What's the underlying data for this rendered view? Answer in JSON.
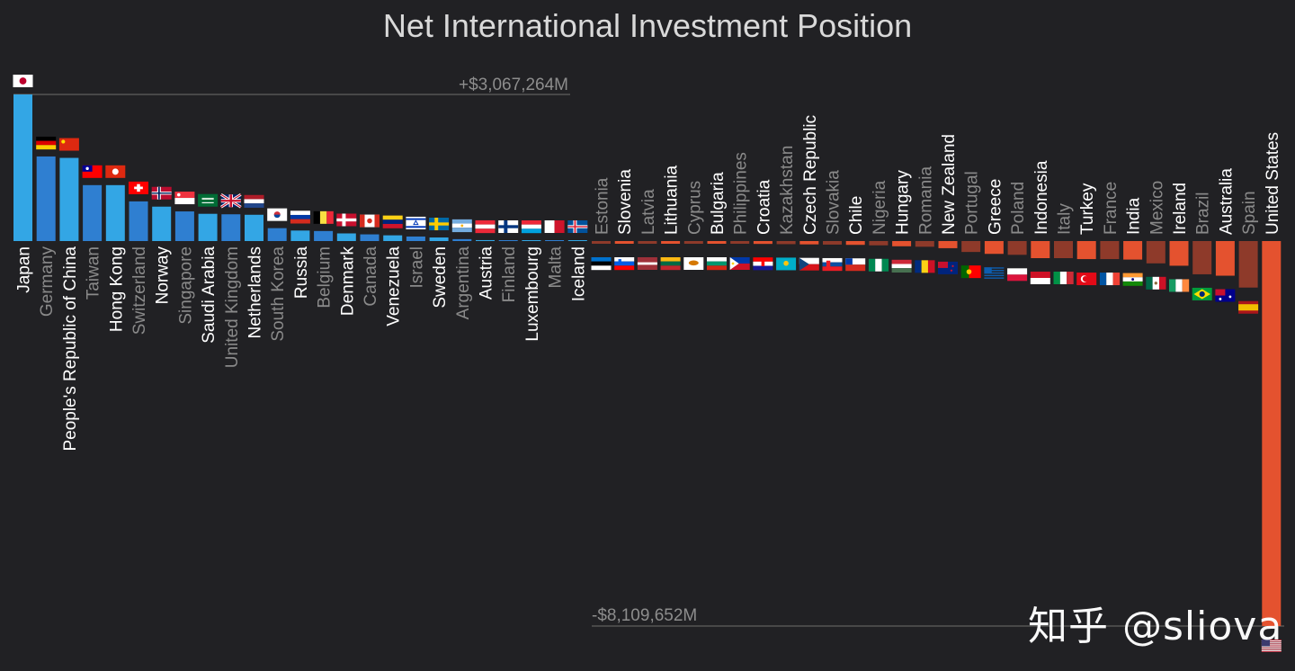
{
  "title": "Net International Investment Position",
  "watermark": "知乎 @sliova",
  "chart_data": {
    "type": "bar",
    "title": "Net International Investment Position",
    "max_label": "+$3,067,264M",
    "min_label": "-$8,109,652M",
    "unit": "USD millions",
    "ylim": [
      -8109652,
      3067264
    ],
    "colors": {
      "positive_light": "#33a6e5",
      "positive_dark": "#2f7fd1",
      "negative_bright": "#e4522f",
      "negative_dark": "#8e3a2a",
      "label_bright": "#ffffff",
      "label_dim": "#8a8a8a",
      "range_line": "#555555"
    },
    "categories": [
      "Japan",
      "Germany",
      "People's Republic of China",
      "Taiwan",
      "Hong Kong",
      "Switzerland",
      "Norway",
      "Singapore",
      "Saudi Arabia",
      "United Kingdom",
      "Netherlands",
      "South Korea",
      "Russia",
      "Belgium",
      "Denmark",
      "Canada",
      "Venezuela",
      "Israel",
      "Sweden",
      "Argentina",
      "Austria",
      "Finland",
      "Luxembourg",
      "Malta",
      "Iceland",
      "Estonia",
      "Slovenia",
      "Latvia",
      "Lithuania",
      "Cyprus",
      "Bulgaria",
      "Philippines",
      "Croatia",
      "Kazakhstan",
      "Czech Republic",
      "Slovakia",
      "Chile",
      "Nigeria",
      "Hungary",
      "Romania",
      "New Zealand",
      "Portugal",
      "Greece",
      "Poland",
      "Indonesia",
      "Italy",
      "Turkey",
      "France",
      "India",
      "Mexico",
      "Ireland",
      "Brazil",
      "Australia",
      "Spain",
      "United States"
    ],
    "values": [
      3067264,
      1770000,
      1740000,
      1170000,
      1170000,
      830000,
      720000,
      620000,
      570000,
      560000,
      550000,
      270000,
      220000,
      210000,
      160000,
      140000,
      120000,
      95000,
      75000,
      40000,
      20000,
      10000,
      5000,
      3000,
      1000,
      -20000,
      -25000,
      -35000,
      -40000,
      -45000,
      -48000,
      -55000,
      -60000,
      -65000,
      -70000,
      -75000,
      -80000,
      -90000,
      -110000,
      -120000,
      -150000,
      -230000,
      -270000,
      -290000,
      -360000,
      -360000,
      -380000,
      -380000,
      -390000,
      -470000,
      -520000,
      -700000,
      -730000,
      -980000,
      -8109652
    ],
    "label_style": [
      "bright",
      "dim",
      "bright",
      "dim",
      "bright",
      "dim",
      "bright",
      "dim",
      "bright",
      "dim",
      "bright",
      "dim",
      "bright",
      "dim",
      "bright",
      "dim",
      "bright",
      "dim",
      "bright",
      "dim",
      "bright",
      "dim",
      "bright",
      "dim",
      "bright",
      "dim",
      "bright",
      "dim",
      "bright",
      "dim",
      "bright",
      "dim",
      "bright",
      "dim",
      "bright",
      "dim",
      "bright",
      "dim",
      "bright",
      "dim",
      "bright",
      "dim",
      "bright",
      "dim",
      "bright",
      "dim",
      "bright",
      "dim",
      "bright",
      "dim",
      "bright",
      "dim",
      "bright",
      "dim",
      "bright"
    ],
    "flag_icons": [
      "japan-flag-icon",
      "germany-flag-icon",
      "china-flag-icon",
      "taiwan-flag-icon",
      "hong-kong-flag-icon",
      "switzerland-flag-icon",
      "norway-flag-icon",
      "singapore-flag-icon",
      "saudi-arabia-flag-icon",
      "united-kingdom-flag-icon",
      "netherlands-flag-icon",
      "south-korea-flag-icon",
      "russia-flag-icon",
      "belgium-flag-icon",
      "denmark-flag-icon",
      "canada-flag-icon",
      "venezuela-flag-icon",
      "israel-flag-icon",
      "sweden-flag-icon",
      "argentina-flag-icon",
      "austria-flag-icon",
      "finland-flag-icon",
      "luxembourg-flag-icon",
      "malta-flag-icon",
      "iceland-flag-icon",
      "estonia-flag-icon",
      "slovenia-flag-icon",
      "latvia-flag-icon",
      "lithuania-flag-icon",
      "cyprus-flag-icon",
      "bulgaria-flag-icon",
      "philippines-flag-icon",
      "croatia-flag-icon",
      "kazakhstan-flag-icon",
      "czech-republic-flag-icon",
      "slovakia-flag-icon",
      "chile-flag-icon",
      "nigeria-flag-icon",
      "hungary-flag-icon",
      "romania-flag-icon",
      "new-zealand-flag-icon",
      "portugal-flag-icon",
      "greece-flag-icon",
      "poland-flag-icon",
      "indonesia-flag-icon",
      "italy-flag-icon",
      "turkey-flag-icon",
      "france-flag-icon",
      "india-flag-icon",
      "mexico-flag-icon",
      "ireland-flag-icon",
      "brazil-flag-icon",
      "australia-flag-icon",
      "spain-flag-icon",
      "united-states-flag-icon"
    ]
  }
}
